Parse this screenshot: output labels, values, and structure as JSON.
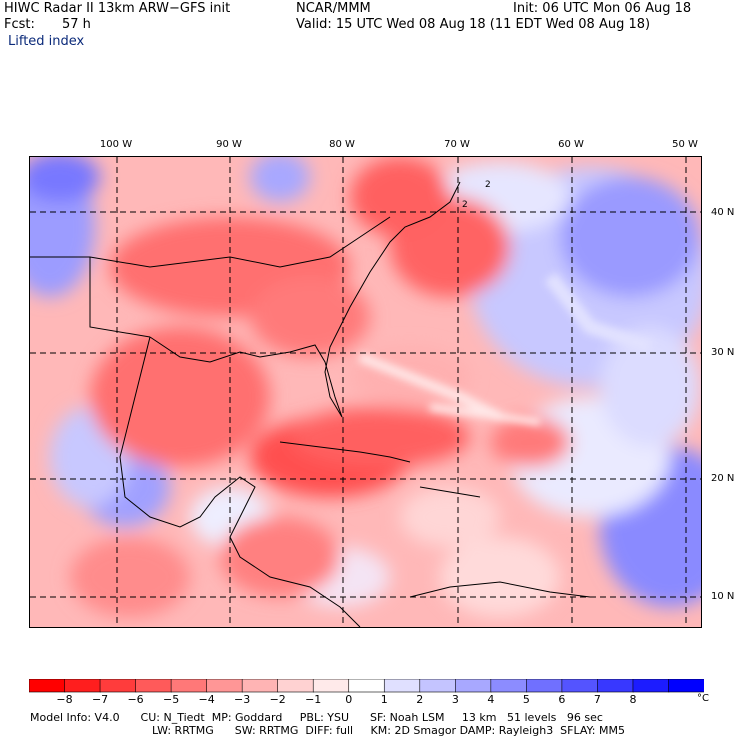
{
  "header": {
    "title": "HIWC Radar II 13km ARW−GFS init",
    "org": "NCAR/MMM",
    "init": "Init: 06 UTC Mon 06 Aug 18",
    "fcst_label": "Fcst:",
    "fcst_value": "57 h",
    "valid": "Valid: 15 UTC Wed 08 Aug 18 (11 EDT Wed 08 Aug 18)",
    "field": "Lifted index"
  },
  "map": {
    "lon_labels": [
      "100 W",
      "90 W",
      "80 W",
      "70 W",
      "60 W",
      "50 W"
    ],
    "lat_labels": [
      "40 N",
      "30 N",
      "20 N",
      "10 N"
    ],
    "contour_labels": [
      "2",
      "2"
    ]
  },
  "colorbar": {
    "unit": "°C",
    "labels": [
      "−8",
      "−7",
      "−6",
      "−5",
      "−4",
      "−3",
      "−2",
      "−1",
      "0",
      "1",
      "2",
      "3",
      "4",
      "5",
      "6",
      "7",
      "8"
    ],
    "colors": [
      "#ff0000",
      "#ff1e1e",
      "#ff3c3c",
      "#ff5a5a",
      "#ff7878",
      "#ff9696",
      "#ffb4b4",
      "#ffd2d2",
      "#ffeaea",
      "#ffffff",
      "#e0e0ff",
      "#c4c4ff",
      "#a8a8ff",
      "#8c8cff",
      "#7070ff",
      "#5454ff",
      "#3838ff",
      "#1c1cff",
      "#0000ff"
    ]
  },
  "footer": {
    "line1": "Model Info: V4.0      CU: N_Tiedt  MP: Goddard     PBL: YSU      SF: Noah LSM     13 km   51 levels   96 sec",
    "line2": "LW: RRTMG      SW: RRTMG  DIFF: full     KM: 2D Smagor DAMP: Rayleigh3  SFLAY: MM5"
  }
}
